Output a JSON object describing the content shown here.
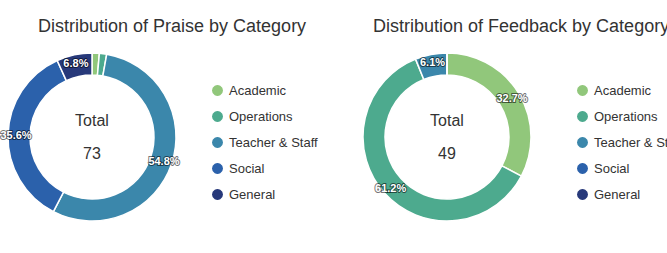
{
  "chart_data": [
    {
      "type": "pie",
      "title": "Distribution of Praise by Category",
      "categories": [
        "Academic",
        "Operations",
        "Teacher & Staff",
        "Social",
        "General"
      ],
      "values": [
        1.4,
        1.4,
        54.8,
        35.6,
        6.8
      ],
      "value_labels": [
        null,
        null,
        "54.8%",
        "35.6%",
        "6.8%"
      ],
      "colors": [
        "#91c77b",
        "#4daa8e",
        "#3b87ab",
        "#2b61ab",
        "#27397a"
      ],
      "data_labels": true,
      "legend": "right",
      "center_label": "Total",
      "total": 73
    },
    {
      "type": "pie",
      "title": "Distribution of Feedback by Category",
      "categories": [
        "Academic",
        "Operations",
        "Teacher & Staff",
        "Social",
        "General"
      ],
      "values": [
        32.7,
        61.2,
        6.1,
        0,
        0
      ],
      "value_labels": [
        "32.7%",
        "61.2%",
        "6.1%",
        null,
        null
      ],
      "colors": [
        "#91c77b",
        "#4daa8e",
        "#3b87ab",
        "#2b61ab",
        "#27397a"
      ],
      "data_labels": true,
      "legend": "right",
      "center_label": "Total",
      "total": 49
    }
  ]
}
